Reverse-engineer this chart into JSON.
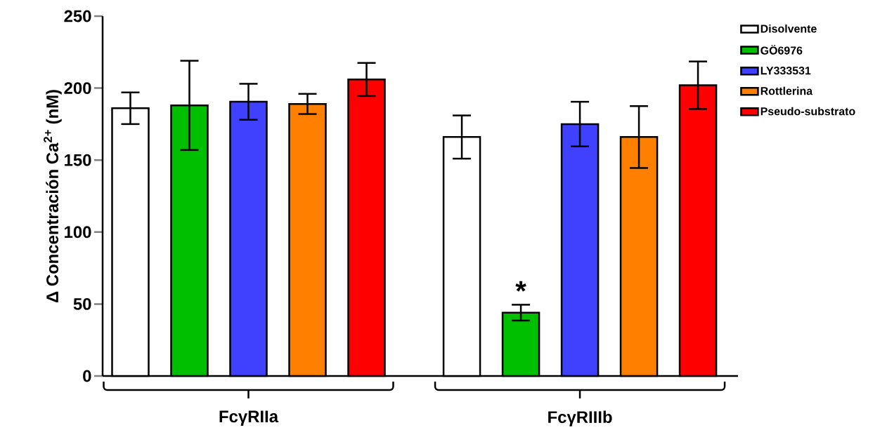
{
  "chart_data": {
    "type": "bar",
    "ylabel": "Δ Concentración Ca$^{2+}$ (nM)",
    "categories": [
      "FcγRIIa",
      "FcγRIIIb"
    ],
    "series": [
      {
        "name": "Disolvente",
        "color": "#ffffff",
        "values": [
          186,
          166
        ],
        "errors": [
          11,
          15
        ]
      },
      {
        "name": "GÖ6976",
        "color": "#00bf00",
        "values": [
          188,
          44
        ],
        "errors": [
          31,
          5.5
        ]
      },
      {
        "name": "LY333531",
        "color": "#4040ff",
        "values": [
          190.5,
          175
        ],
        "errors": [
          12.5,
          15.5
        ]
      },
      {
        "name": "Rottlerina",
        "color": "#ff8000",
        "values": [
          189,
          166
        ],
        "errors": [
          7,
          21.5
        ]
      },
      {
        "name": "Pseudo-substrato",
        "color": "#ff0000",
        "values": [
          206,
          202
        ],
        "errors": [
          11.5,
          16.5
        ]
      }
    ],
    "ylim": [
      0,
      250
    ],
    "yticks": [
      0,
      50,
      100,
      150,
      200,
      250
    ],
    "legend": "top right",
    "grid": false,
    "annotations": [
      "*"
    ]
  }
}
